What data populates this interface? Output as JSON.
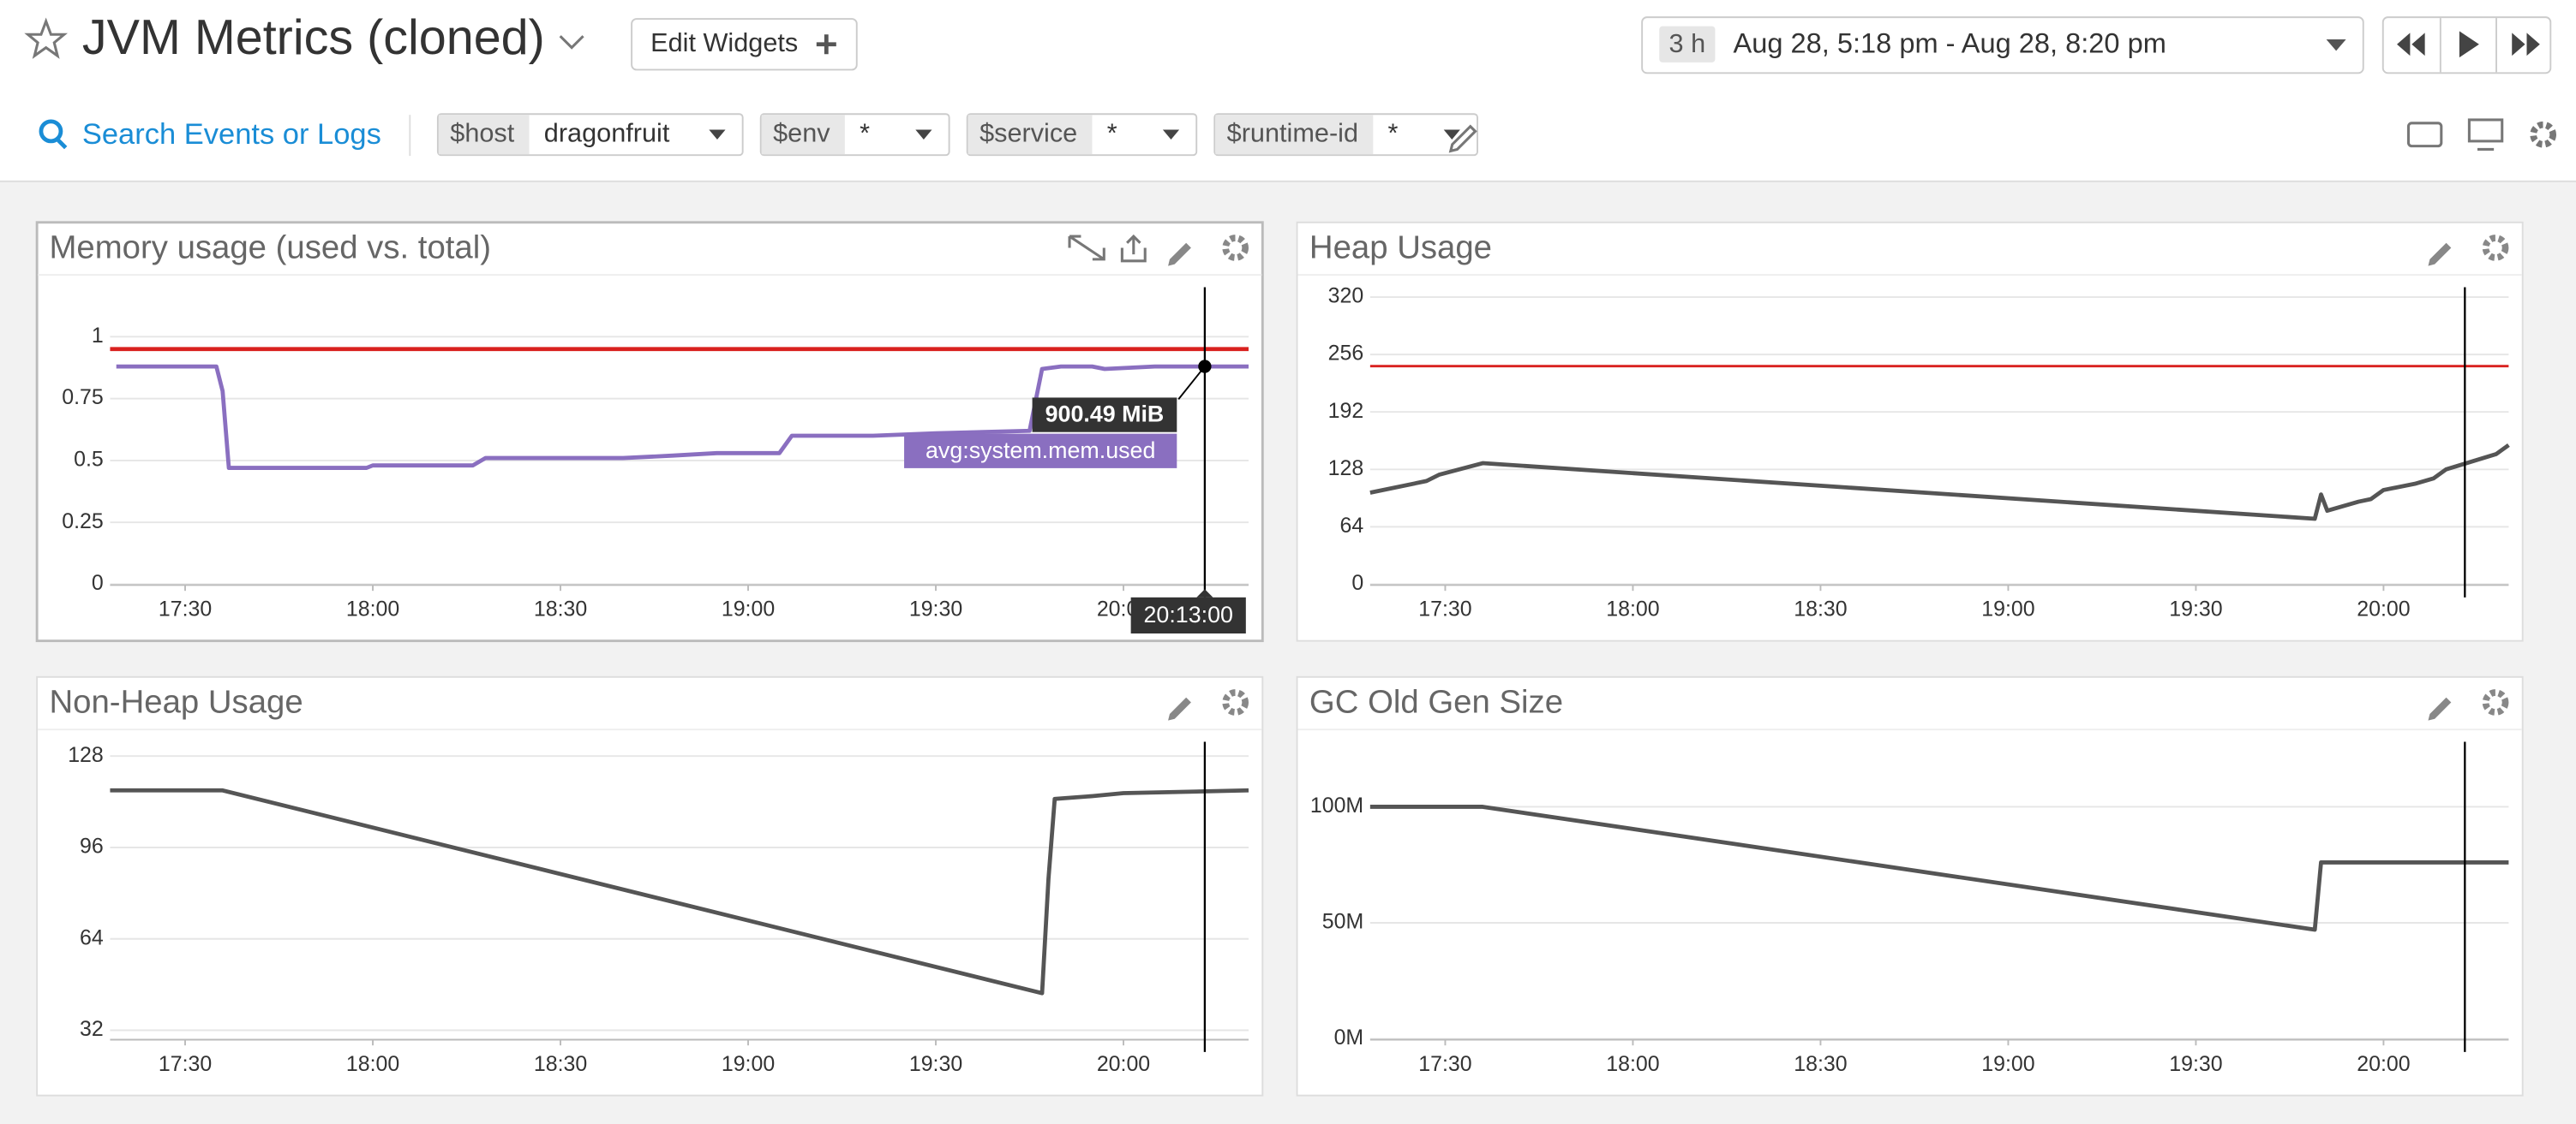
{
  "header": {
    "title": "JVM Metrics (cloned)",
    "button": "Edit Widgets",
    "time_range": {
      "duration": "3 h",
      "label": "Aug 28, 5:18 pm - Aug 28, 8:20 pm"
    }
  },
  "toolbar": {
    "search": "Search Events or Logs",
    "variables": [
      {
        "name": "$host",
        "value": "dragonfruit"
      },
      {
        "name": "$env",
        "value": "*"
      },
      {
        "name": "$service",
        "value": "*"
      },
      {
        "name": "$runtime-id",
        "value": "*"
      }
    ]
  },
  "chart_data": [
    {
      "type": "line",
      "title": "Memory usage (used vs. total)",
      "x": [
        "17:19",
        "17:35",
        "17:36",
        "17:37",
        "17:50",
        "17:59",
        "18:00",
        "18:16",
        "18:18",
        "18:40",
        "18:48",
        "18:55",
        "19:05",
        "19:07",
        "19:20",
        "19:30",
        "19:45",
        "19:47",
        "19:50",
        "19:55",
        "19:57",
        "20:05",
        "20:13",
        "20:20"
      ],
      "series": [
        {
          "name": "avg:system.mem.used",
          "color": "#8a6fc0",
          "values": [
            0.88,
            0.88,
            0.78,
            0.47,
            0.47,
            0.47,
            0.48,
            0.48,
            0.51,
            0.51,
            0.52,
            0.53,
            0.53,
            0.6,
            0.6,
            0.61,
            0.62,
            0.87,
            0.88,
            0.88,
            0.87,
            0.88,
            0.88,
            0.88
          ]
        }
      ],
      "xlim": [
        "17:18",
        "20:20"
      ],
      "xticks": [
        "17:30",
        "18:00",
        "18:30",
        "19:00",
        "19:30",
        "20:00"
      ],
      "ylim": [
        0,
        1.2
      ],
      "yticks": [
        0,
        0.25,
        0.5,
        0.75,
        1
      ],
      "threshold": {
        "value": 0.95,
        "color": "#d9211f"
      },
      "crosshair": "20:13",
      "tooltip": {
        "label": "900.49 MiB",
        "time": "20:13:00"
      },
      "grid": true
    },
    {
      "type": "line",
      "title": "Heap Usage",
      "x": [
        "17:18",
        "17:27",
        "17:29",
        "17:36",
        "19:49",
        "19:50",
        "19:51",
        "19:56",
        "19:58",
        "20:00",
        "20:05",
        "20:08",
        "20:10",
        "20:18",
        "20:20"
      ],
      "series": [
        {
          "color": "#555555",
          "values": [
            102,
            115,
            122,
            135,
            73,
            100,
            82,
            92,
            95,
            105,
            112,
            118,
            128,
            145,
            155
          ]
        }
      ],
      "xlim": [
        "17:18",
        "20:20"
      ],
      "xticks": [
        "17:30",
        "18:00",
        "18:30",
        "19:00",
        "19:30",
        "20:00"
      ],
      "ylim": [
        0,
        331
      ],
      "yticks": [
        0,
        64,
        128,
        192,
        256,
        320
      ],
      "threshold": {
        "value": 243,
        "color": "#d9211f"
      },
      "crosshair": "20:13",
      "grid": true
    },
    {
      "type": "line",
      "title": "Non-Heap Usage",
      "x": [
        "17:18",
        "17:36",
        "19:47",
        "19:48",
        "19:49",
        "19:55",
        "20:00",
        "20:20"
      ],
      "series": [
        {
          "color": "#555555",
          "values": [
            116,
            116,
            45,
            85,
            113,
            114,
            115,
            116
          ]
        }
      ],
      "xlim": [
        "17:18",
        "20:20"
      ],
      "xticks": [
        "17:30",
        "18:00",
        "18:30",
        "19:00",
        "19:30",
        "20:00"
      ],
      "ylim": [
        29,
        133
      ],
      "yticks": [
        32,
        64,
        96,
        128
      ],
      "crosshair": "20:13",
      "grid": true
    },
    {
      "type": "line",
      "title": "GC Old Gen Size",
      "x": [
        "17:18",
        "17:36",
        "19:49",
        "19:50",
        "20:20"
      ],
      "series": [
        {
          "color": "#555555",
          "values": [
            100000000,
            100000000,
            47000000,
            76000000,
            76000000
          ]
        }
      ],
      "xlim": [
        "17:18",
        "20:20"
      ],
      "xticks": [
        "17:30",
        "18:00",
        "18:30",
        "19:00",
        "19:30",
        "20:00"
      ],
      "ylim": [
        0,
        128000000
      ],
      "yticks": [
        {
          "value": 0,
          "label": "0M"
        },
        {
          "value": 50000000,
          "label": "50M"
        },
        {
          "value": 100000000,
          "label": "100M"
        }
      ],
      "crosshair": "20:13",
      "grid": true
    }
  ]
}
